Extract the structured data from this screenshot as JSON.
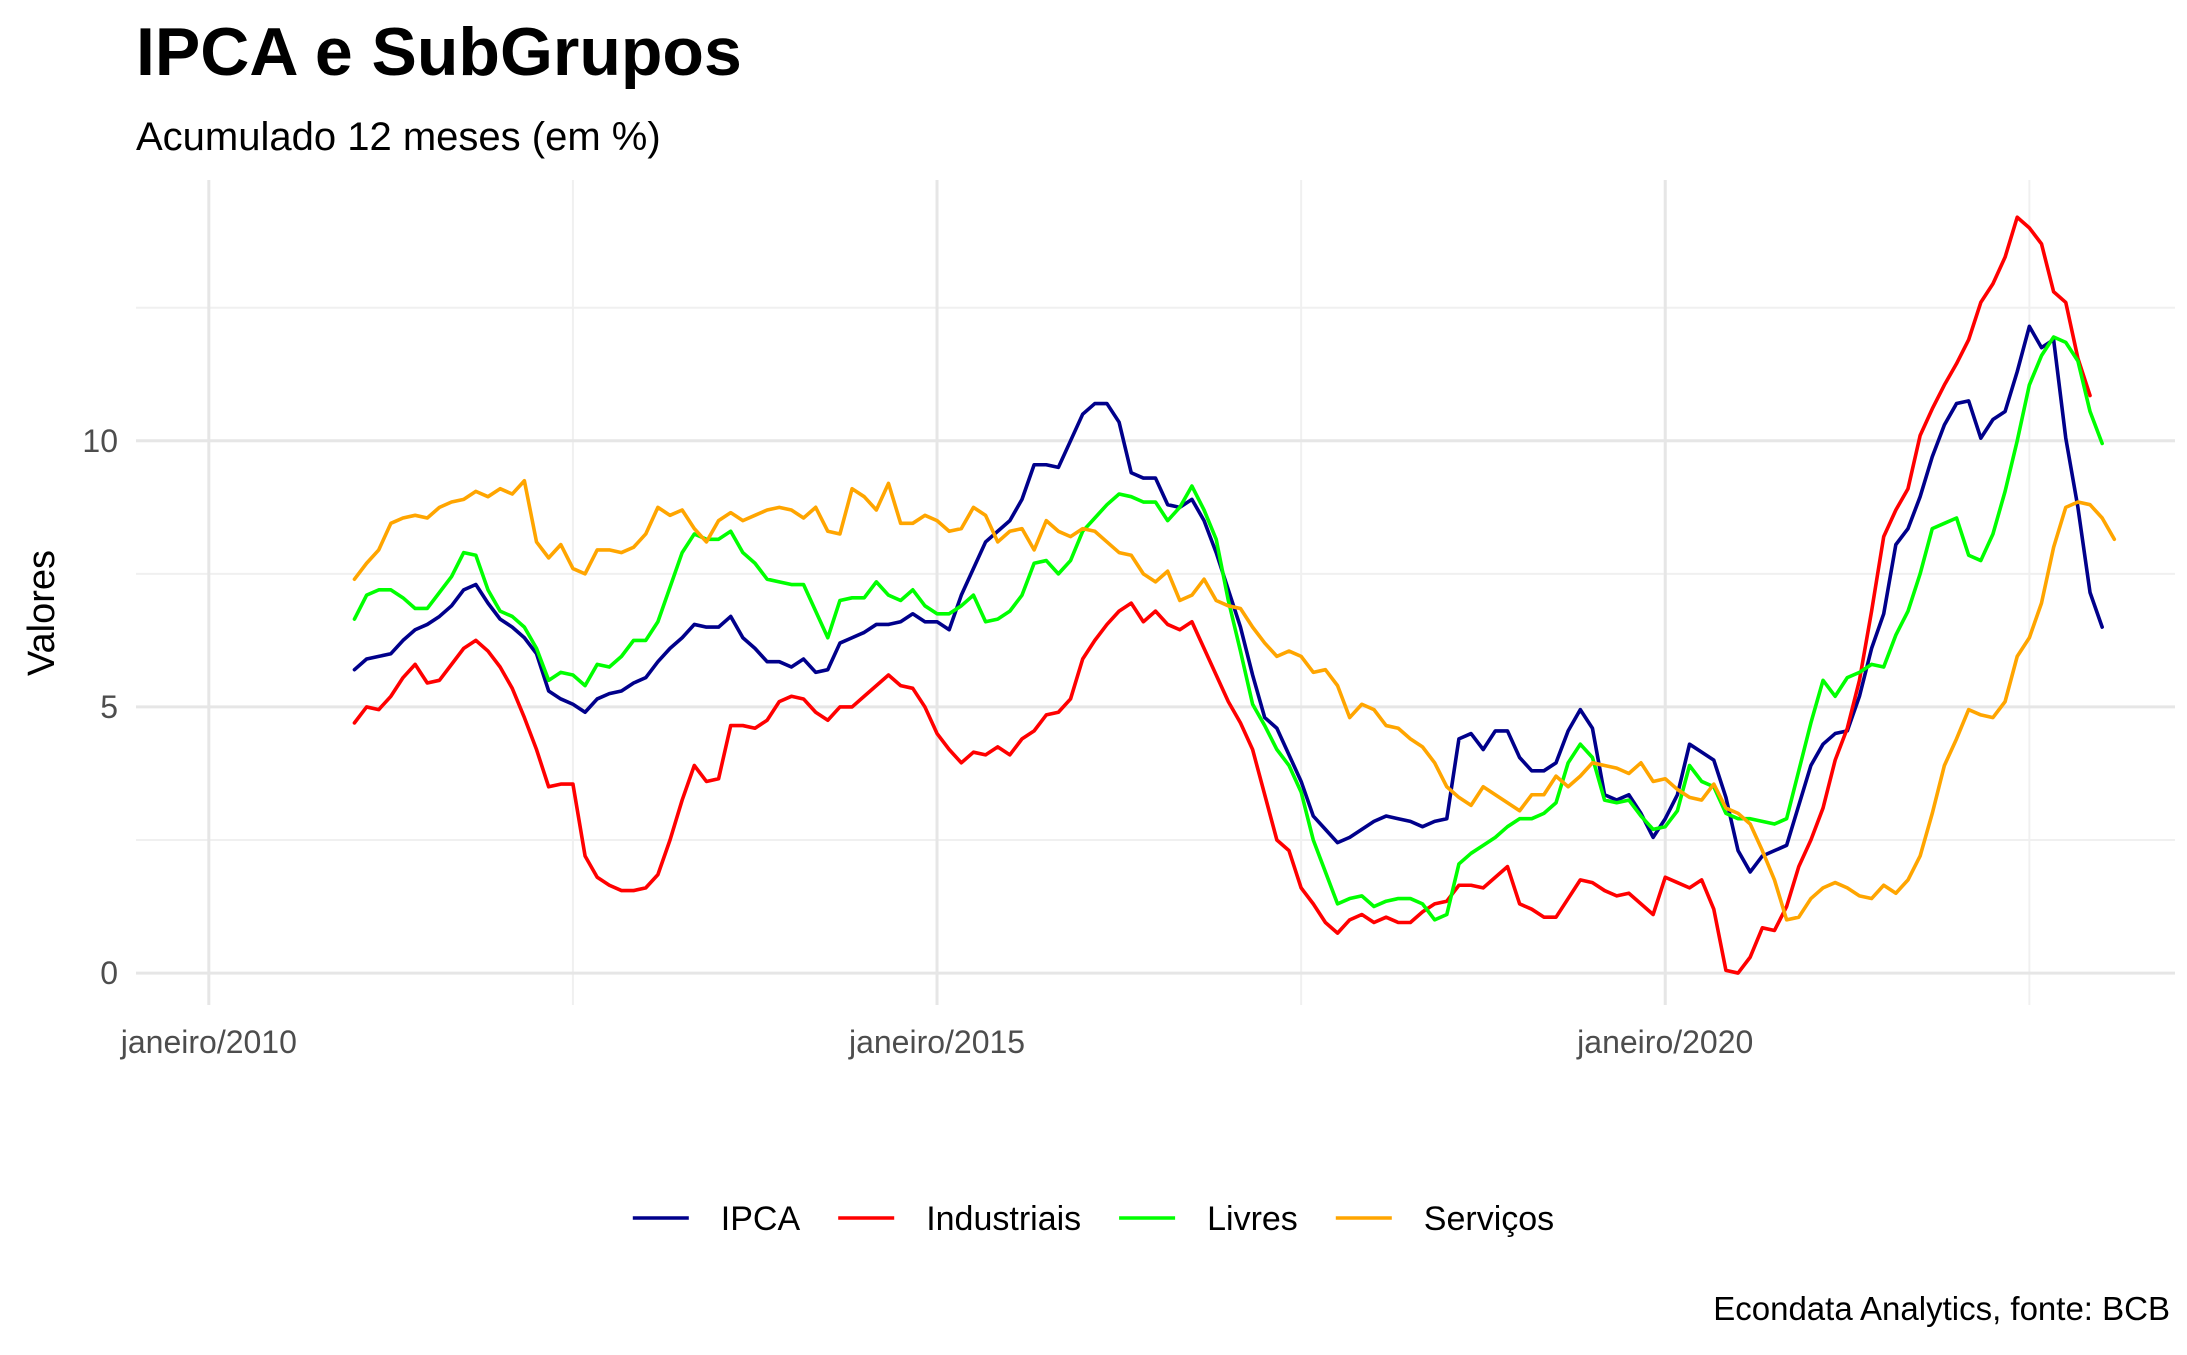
{
  "chart_data": {
    "type": "line",
    "title": "IPCA e SubGrupos",
    "subtitle": "Acumulado 12 meses (em %)",
    "xlabel": "",
    "ylabel": "Valores",
    "caption": "Econdata Analytics, fonte: BCB",
    "x_type": "date",
    "x_start": "2011-01",
    "x_end": "2022-12",
    "xlim": [
      "2009-07",
      "2023-07"
    ],
    "ylim": [
      -0.6,
      14.9
    ],
    "x_ticks": [
      {
        "date": "2010-01",
        "label": "janeiro/2010"
      },
      {
        "date": "2015-01",
        "label": "janeiro/2015"
      },
      {
        "date": "2020-01",
        "label": "janeiro/2020"
      }
    ],
    "x_minor_ticks": [
      "2012-07",
      "2017-07",
      "2022-07"
    ],
    "y_ticks": [
      0,
      5,
      10
    ],
    "y_minor_ticks": [
      2.5,
      7.5,
      12.5
    ],
    "grid": true,
    "legend_position": "bottom",
    "series": [
      {
        "name": "IPCA",
        "color": "#00008b",
        "values": [
          5.7,
          5.9,
          5.95,
          6.0,
          6.25,
          6.45,
          6.55,
          6.7,
          6.9,
          7.2,
          7.3,
          6.95,
          6.65,
          6.5,
          6.3,
          6.0,
          5.3,
          5.15,
          5.05,
          4.9,
          5.15,
          5.25,
          5.3,
          5.45,
          5.55,
          5.85,
          6.1,
          6.3,
          6.55,
          6.5,
          6.5,
          6.7,
          6.3,
          6.1,
          5.85,
          5.85,
          5.75,
          5.9,
          5.65,
          5.7,
          6.2,
          6.3,
          6.4,
          6.55,
          6.55,
          6.6,
          6.75,
          6.6,
          6.6,
          6.45,
          7.1,
          7.6,
          8.1,
          8.3,
          8.5,
          8.9,
          9.55,
          9.55,
          9.5,
          10.0,
          10.5,
          10.7,
          10.7,
          10.35,
          9.4,
          9.3,
          9.3,
          8.8,
          8.75,
          8.9,
          8.5,
          7.9,
          7.2,
          6.5,
          5.6,
          4.8,
          4.6,
          4.1,
          3.6,
          2.95,
          2.7,
          2.45,
          2.55,
          2.7,
          2.85,
          2.95,
          2.9,
          2.85,
          2.75,
          2.85,
          2.9,
          4.4,
          4.5,
          4.2,
          4.55,
          4.55,
          4.05,
          3.8,
          3.8,
          3.95,
          4.55,
          4.95,
          4.6,
          3.35,
          3.25,
          3.35,
          3.0,
          2.55,
          2.9,
          3.35,
          4.3,
          4.15,
          4.0,
          3.3,
          2.3,
          1.9,
          2.2,
          2.3,
          2.4,
          3.15,
          3.9,
          4.3,
          4.5,
          4.55,
          5.2,
          6.1,
          6.75,
          8.05,
          8.35,
          8.95,
          9.7,
          10.3,
          10.7,
          10.75,
          10.05,
          10.4,
          10.55,
          11.3,
          12.15,
          11.75,
          11.9,
          10.05,
          8.75,
          7.15,
          6.5
        ]
      },
      {
        "name": "Industriais",
        "color": "#ff0000",
        "values": [
          4.7,
          5.0,
          4.95,
          5.2,
          5.55,
          5.8,
          5.45,
          5.5,
          5.8,
          6.1,
          6.25,
          6.05,
          5.75,
          5.35,
          4.8,
          4.2,
          3.5,
          3.55,
          3.55,
          2.2,
          1.8,
          1.65,
          1.55,
          1.55,
          1.6,
          1.85,
          2.5,
          3.25,
          3.9,
          3.6,
          3.65,
          4.65,
          4.65,
          4.6,
          4.75,
          5.1,
          5.2,
          5.15,
          4.9,
          4.75,
          5.0,
          5.0,
          5.2,
          5.4,
          5.6,
          5.4,
          5.35,
          5.0,
          4.5,
          4.2,
          3.95,
          4.15,
          4.1,
          4.25,
          4.1,
          4.4,
          4.55,
          4.85,
          4.9,
          5.15,
          5.9,
          6.25,
          6.55,
          6.8,
          6.95,
          6.6,
          6.8,
          6.55,
          6.45,
          6.6,
          6.1,
          5.6,
          5.1,
          4.7,
          4.2,
          3.35,
          2.5,
          2.3,
          1.6,
          1.3,
          0.95,
          0.75,
          1.0,
          1.1,
          0.95,
          1.05,
          0.95,
          0.95,
          1.15,
          1.3,
          1.35,
          1.65,
          1.65,
          1.6,
          1.8,
          2.0,
          1.3,
          1.2,
          1.05,
          1.05,
          1.4,
          1.75,
          1.7,
          1.55,
          1.45,
          1.5,
          1.3,
          1.1,
          1.8,
          1.7,
          1.6,
          1.75,
          1.2,
          0.05,
          0.0,
          0.3,
          0.85,
          0.8,
          1.25,
          2.0,
          2.5,
          3.1,
          4.0,
          4.6,
          5.5,
          6.8,
          8.2,
          8.7,
          9.1,
          10.1,
          10.6,
          11.05,
          11.45,
          11.9,
          12.6,
          12.95,
          13.45,
          14.2,
          14.0,
          13.7,
          12.8,
          12.6,
          11.55,
          10.85
        ]
      },
      {
        "name": "Livres",
        "color": "#00ff00",
        "values": [
          6.65,
          7.1,
          7.2,
          7.2,
          7.05,
          6.85,
          6.85,
          7.15,
          7.45,
          7.9,
          7.85,
          7.2,
          6.8,
          6.7,
          6.5,
          6.1,
          5.5,
          5.65,
          5.6,
          5.4,
          5.8,
          5.75,
          5.95,
          6.25,
          6.25,
          6.6,
          7.25,
          7.9,
          8.25,
          8.15,
          8.15,
          8.3,
          7.9,
          7.7,
          7.4,
          7.35,
          7.3,
          7.3,
          6.8,
          6.3,
          7.0,
          7.05,
          7.05,
          7.35,
          7.1,
          7.0,
          7.2,
          6.9,
          6.75,
          6.75,
          6.9,
          7.1,
          6.6,
          6.65,
          6.8,
          7.1,
          7.7,
          7.75,
          7.5,
          7.75,
          8.3,
          8.55,
          8.8,
          9.0,
          8.95,
          8.85,
          8.85,
          8.5,
          8.75,
          9.15,
          8.7,
          8.15,
          7.0,
          6.05,
          5.05,
          4.65,
          4.2,
          3.9,
          3.4,
          2.5,
          1.9,
          1.3,
          1.4,
          1.45,
          1.25,
          1.35,
          1.4,
          1.4,
          1.3,
          1.0,
          1.1,
          2.05,
          2.25,
          2.4,
          2.55,
          2.75,
          2.9,
          2.9,
          3.0,
          3.2,
          3.95,
          4.3,
          4.05,
          3.25,
          3.2,
          3.25,
          2.95,
          2.7,
          2.75,
          3.05,
          3.9,
          3.6,
          3.5,
          3.0,
          2.9,
          2.9,
          2.85,
          2.8,
          2.9,
          3.8,
          4.7,
          5.5,
          5.2,
          5.55,
          5.65,
          5.8,
          5.75,
          6.35,
          6.8,
          7.5,
          8.35,
          8.45,
          8.55,
          7.85,
          7.75,
          8.25,
          9.05,
          10.0,
          11.05,
          11.6,
          11.95,
          11.85,
          11.5,
          10.55,
          9.95
        ]
      },
      {
        "name": "Serviços",
        "color": "#ffa500",
        "values": [
          7.4,
          7.7,
          7.95,
          8.45,
          8.55,
          8.6,
          8.55,
          8.75,
          8.85,
          8.9,
          9.05,
          8.95,
          9.1,
          9.0,
          9.25,
          8.1,
          7.8,
          8.05,
          7.6,
          7.5,
          7.95,
          7.95,
          7.9,
          8.0,
          8.25,
          8.75,
          8.6,
          8.7,
          8.35,
          8.1,
          8.5,
          8.65,
          8.5,
          8.6,
          8.7,
          8.75,
          8.7,
          8.55,
          8.75,
          8.3,
          8.25,
          9.1,
          8.95,
          8.7,
          9.2,
          8.45,
          8.45,
          8.6,
          8.5,
          8.3,
          8.35,
          8.75,
          8.6,
          8.1,
          8.3,
          8.35,
          7.95,
          8.5,
          8.3,
          8.2,
          8.35,
          8.3,
          8.1,
          7.9,
          7.85,
          7.5,
          7.35,
          7.55,
          7.0,
          7.1,
          7.4,
          7.0,
          6.9,
          6.85,
          6.5,
          6.2,
          5.95,
          6.05,
          5.95,
          5.65,
          5.7,
          5.4,
          4.8,
          5.05,
          4.95,
          4.65,
          4.6,
          4.4,
          4.25,
          3.95,
          3.5,
          3.3,
          3.15,
          3.5,
          3.35,
          3.2,
          3.05,
          3.35,
          3.35,
          3.7,
          3.5,
          3.7,
          3.95,
          3.9,
          3.85,
          3.75,
          3.95,
          3.6,
          3.65,
          3.45,
          3.3,
          3.25,
          3.55,
          3.1,
          3.0,
          2.8,
          2.3,
          1.75,
          1.0,
          1.05,
          1.4,
          1.6,
          1.7,
          1.6,
          1.45,
          1.4,
          1.65,
          1.5,
          1.75,
          2.2,
          3.0,
          3.9,
          4.4,
          4.95,
          4.85,
          4.8,
          5.1,
          5.95,
          6.3,
          6.95,
          8.0,
          8.75,
          8.85,
          8.8,
          8.55,
          8.15
        ]
      }
    ]
  }
}
